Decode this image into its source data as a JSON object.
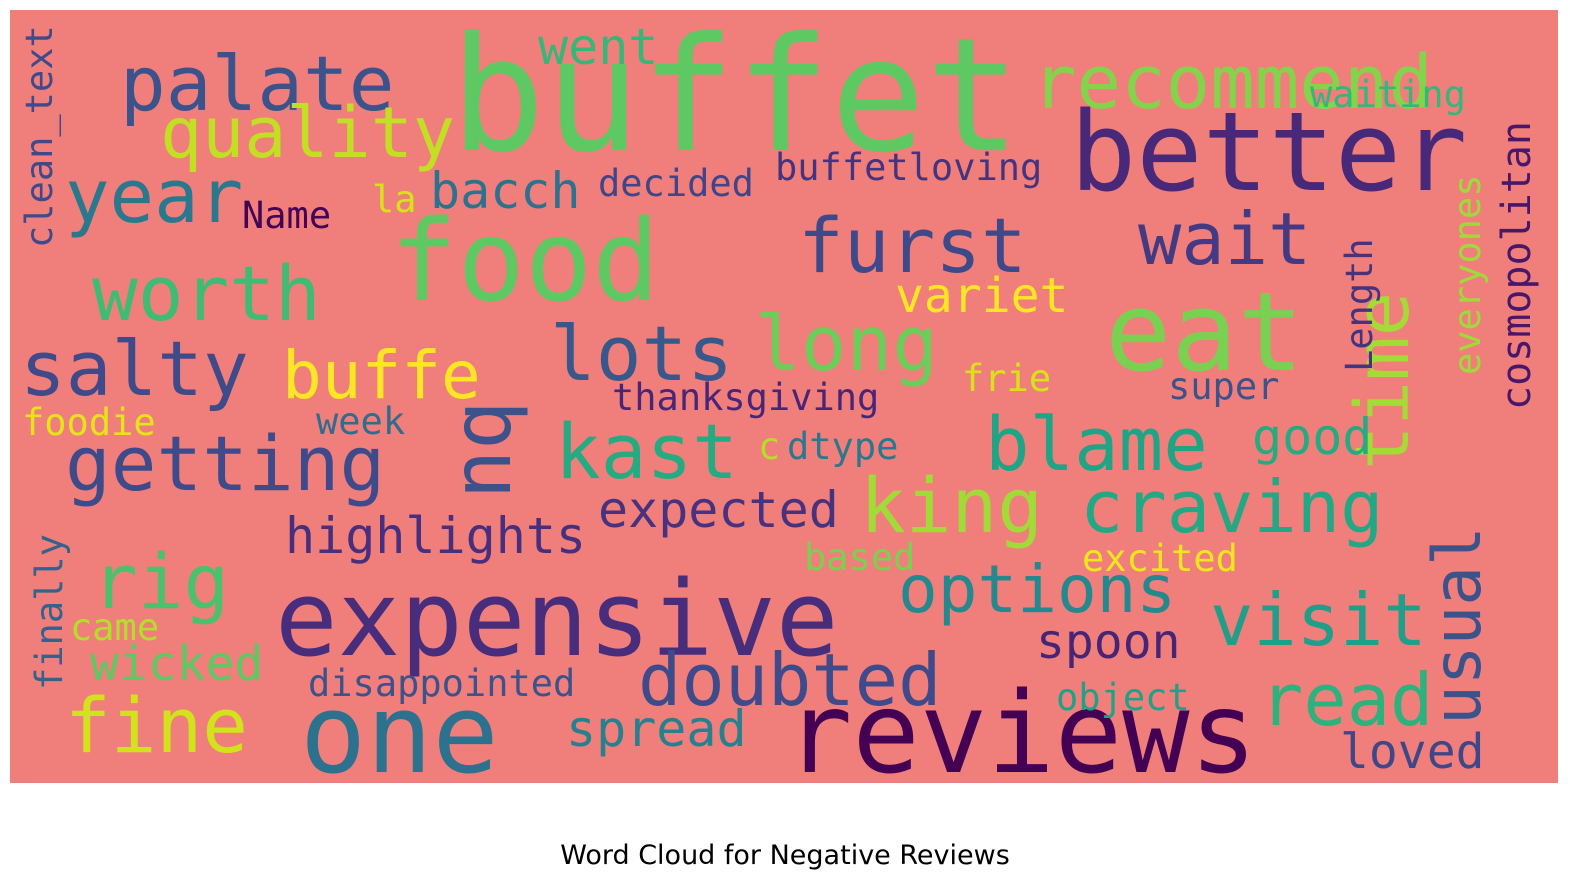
{
  "title": "Word Cloud for Negative Reviews",
  "background_color": "#f07f7b",
  "words": [
    {
      "text": "buffet",
      "color": "#5ec962"
    },
    {
      "text": "better",
      "color": "#482878"
    },
    {
      "text": "food",
      "color": "#5ec962"
    },
    {
      "text": "eat",
      "color": "#7ad151"
    },
    {
      "text": "reviews",
      "color": "#440154"
    },
    {
      "text": "expensive",
      "color": "#472d7b"
    },
    {
      "text": "one",
      "color": "#2c728e"
    },
    {
      "text": "palate",
      "color": "#3b528b"
    },
    {
      "text": "recommend",
      "color": "#84d44b"
    },
    {
      "text": "quality",
      "color": "#c2df23"
    },
    {
      "text": "year",
      "color": "#2a788e"
    },
    {
      "text": "worth",
      "color": "#3fbc73"
    },
    {
      "text": "salty",
      "color": "#3e4a89"
    },
    {
      "text": "furst",
      "color": "#3e4989"
    },
    {
      "text": "wait",
      "color": "#443983"
    },
    {
      "text": "lots",
      "color": "#38588c"
    },
    {
      "text": "long",
      "color": "#6ccd5a"
    },
    {
      "text": "buffe",
      "color": "#fde725"
    },
    {
      "text": "getting",
      "color": "#3e4a89"
    },
    {
      "text": "bu",
      "color": "#3b528b"
    },
    {
      "text": "kast",
      "color": "#25ab82"
    },
    {
      "text": "blame",
      "color": "#20a486"
    },
    {
      "text": "king",
      "color": "#a2da37"
    },
    {
      "text": "craving",
      "color": "#22a884"
    },
    {
      "text": "time",
      "color": "#a5db36"
    },
    {
      "text": "cosmopolitan",
      "color": "#481769"
    },
    {
      "text": "usual",
      "color": "#3b528b"
    },
    {
      "text": "visit",
      "color": "#1f9e89"
    },
    {
      "text": "read",
      "color": "#2db27d"
    },
    {
      "text": "doubted",
      "color": "#3e4a89"
    },
    {
      "text": "options",
      "color": "#23898e"
    },
    {
      "text": "rig",
      "color": "#4ac16d"
    },
    {
      "text": "fine",
      "color": "#d2e21b"
    },
    {
      "text": "highlights",
      "color": "#472f7d"
    },
    {
      "text": "expected",
      "color": "#46327e"
    },
    {
      "text": "spoon",
      "color": "#482475"
    },
    {
      "text": "spread",
      "color": "#27808e"
    },
    {
      "text": "loved",
      "color": "#3f4788"
    },
    {
      "text": "wicked",
      "color": "#5ec962"
    },
    {
      "text": "disappointed",
      "color": "#3b528b"
    },
    {
      "text": "went",
      "color": "#35b779"
    },
    {
      "text": "waiting",
      "color": "#35b779"
    },
    {
      "text": "bacch",
      "color": "#2c728e"
    },
    {
      "text": "decided",
      "color": "#414487"
    },
    {
      "text": "buffetloving",
      "color": "#46337e"
    },
    {
      "text": "variet",
      "color": "#fde725"
    },
    {
      "text": "thanksgiving",
      "color": "#482576"
    },
    {
      "text": "frie",
      "color": "#d8e219"
    },
    {
      "text": "super",
      "color": "#3b528b"
    },
    {
      "text": "good",
      "color": "#25ab82"
    },
    {
      "text": "dtype",
      "color": "#2a788e"
    },
    {
      "text": "c",
      "color": "#b5de2b"
    },
    {
      "text": "week",
      "color": "#2f6c8e"
    },
    {
      "text": "foodie",
      "color": "#e5e419"
    },
    {
      "text": "based",
      "color": "#7ad151"
    },
    {
      "text": "excited",
      "color": "#f1e51d"
    },
    {
      "text": "object",
      "color": "#1fa187"
    },
    {
      "text": "came",
      "color": "#b5de2b"
    },
    {
      "text": "Name",
      "color": "#440154"
    },
    {
      "text": "la",
      "color": "#d8e219"
    },
    {
      "text": "clean_text",
      "color": "#3e4a89"
    },
    {
      "text": "finally",
      "color": "#33638d"
    },
    {
      "text": "Length",
      "color": "#46337e"
    },
    {
      "text": "everyones",
      "color": "#9fda3a"
    }
  ]
}
